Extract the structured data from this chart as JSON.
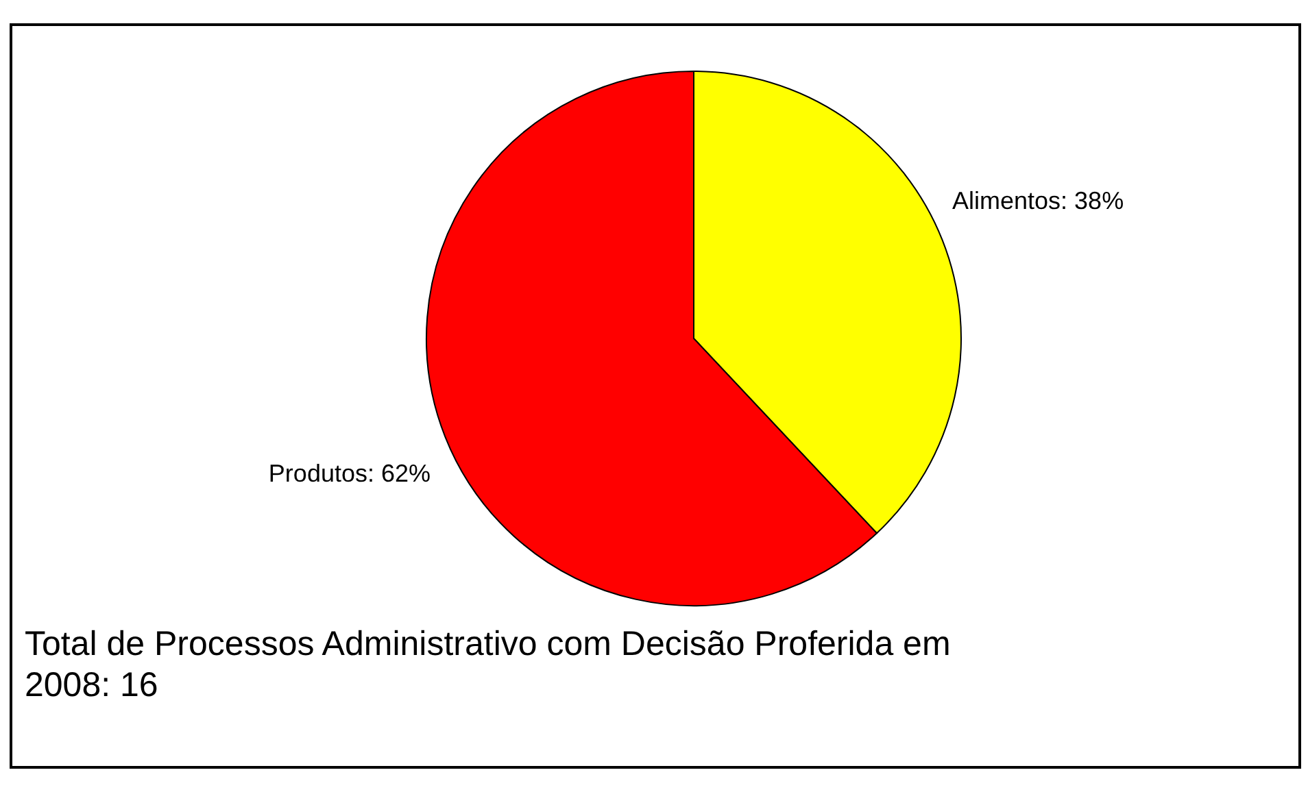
{
  "chart_data": {
    "type": "pie",
    "categories": [
      "Alimentos",
      "Produtos"
    ],
    "values": [
      38,
      62
    ],
    "colors": [
      "#ffff00",
      "#ff0000"
    ],
    "value_labels": [
      "38%",
      "62%"
    ],
    "annotations": [
      "Total de Processos Administrativo com Decisão Proferida em 2008: 16"
    ]
  }
}
